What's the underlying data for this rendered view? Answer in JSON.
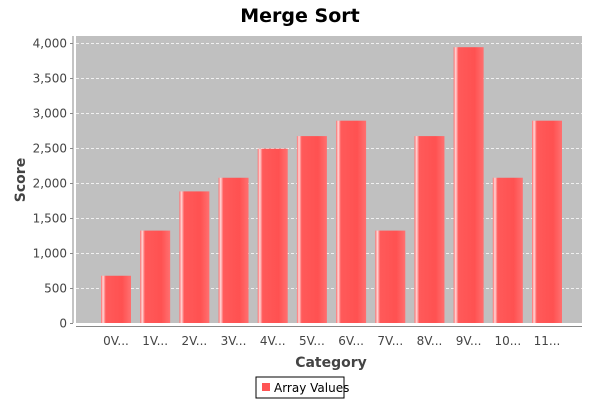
{
  "chart_data": {
    "type": "bar",
    "title": "Merge Sort",
    "xlabel": "Category",
    "ylabel": "Score",
    "categories": [
      "0V...",
      "1V...",
      "2V...",
      "3V...",
      "4V...",
      "5V...",
      "6V...",
      "7V...",
      "8V...",
      "9V...",
      "10...",
      "11..."
    ],
    "series": [
      {
        "name": "Array Values",
        "values": [
          675,
          1320,
          1880,
          2075,
          2490,
          2670,
          2890,
          1320,
          2670,
          3940,
          2075,
          2890
        ]
      }
    ],
    "ylim": [
      0,
      4100
    ],
    "yticks": [
      0,
      500,
      1000,
      1500,
      2000,
      2500,
      3000,
      3500,
      4000
    ],
    "ytick_labels": [
      "0",
      "500",
      "1,000",
      "1,500",
      "2,000",
      "2,500",
      "3,000",
      "3,500",
      "4,000"
    ],
    "grid": true,
    "legend": "bottom-center",
    "colors": {
      "bar": "#ff5555",
      "plot_background": "#c0c0c0",
      "grid": "#ffffff"
    }
  }
}
